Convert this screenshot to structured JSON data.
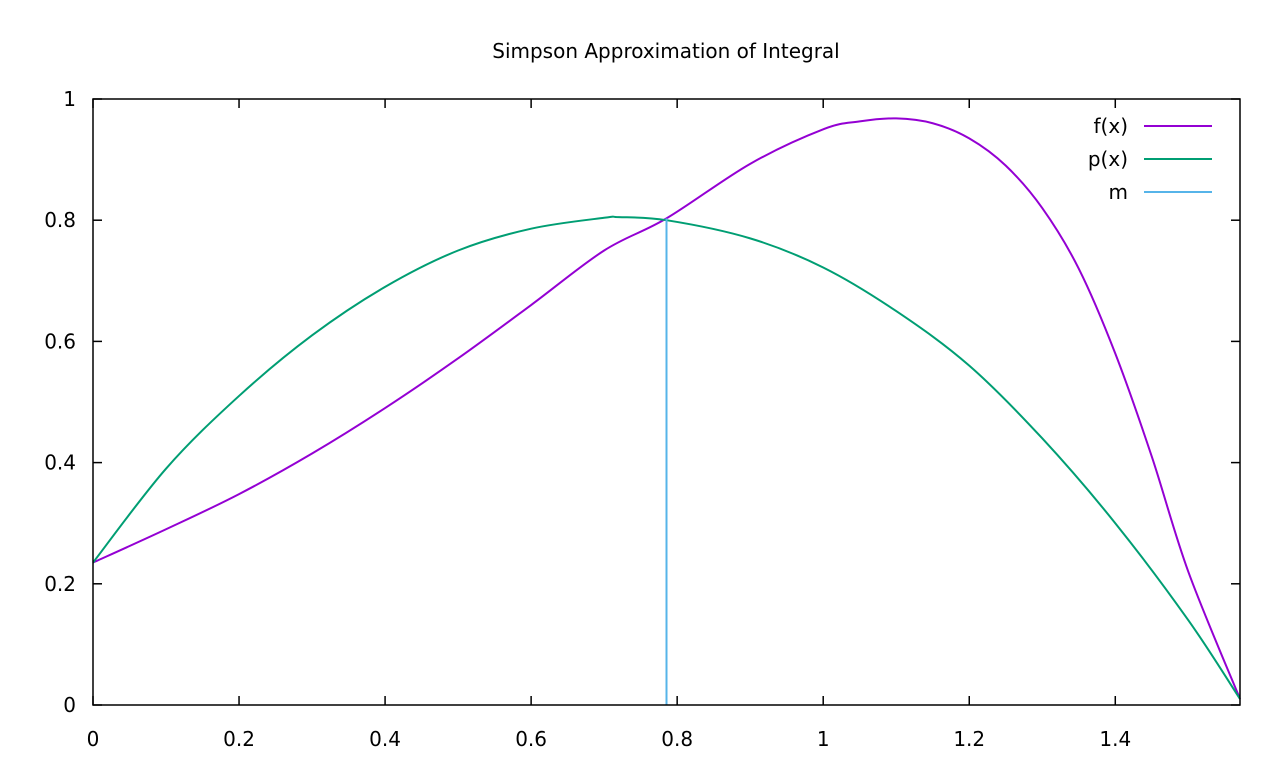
{
  "chart_data": {
    "type": "line",
    "title": "Simpson Approximation of Integral",
    "xlabel": "",
    "ylabel": "",
    "xlim": [
      0,
      1.5708
    ],
    "ylim": [
      0,
      1
    ],
    "x_ticks": [
      {
        "value": 0,
        "label": "0"
      },
      {
        "value": 0.2,
        "label": "0.2"
      },
      {
        "value": 0.4,
        "label": "0.4"
      },
      {
        "value": 0.6,
        "label": "0.6"
      },
      {
        "value": 0.8,
        "label": "0.8"
      },
      {
        "value": 1.0,
        "label": "1"
      },
      {
        "value": 1.2,
        "label": "1.2"
      },
      {
        "value": 1.4,
        "label": "1.4"
      }
    ],
    "y_ticks": [
      {
        "value": 0,
        "label": "0"
      },
      {
        "value": 0.2,
        "label": "0.2"
      },
      {
        "value": 0.4,
        "label": "0.4"
      },
      {
        "value": 0.6,
        "label": "0.6"
      },
      {
        "value": 0.8,
        "label": "0.8"
      },
      {
        "value": 1.0,
        "label": "1"
      }
    ],
    "grid": false,
    "legend_position": "top-right",
    "series": [
      {
        "name": "f(x)",
        "color": "#9400d3",
        "x": [
          0,
          0.1,
          0.2,
          0.3,
          0.4,
          0.5,
          0.6,
          0.7,
          0.7854,
          0.9,
          1.0,
          1.05,
          1.1,
          1.15,
          1.2,
          1.25,
          1.3,
          1.35,
          1.4,
          1.45,
          1.5,
          1.5708
        ],
        "y": [
          0.235,
          0.29,
          0.348,
          0.415,
          0.49,
          0.572,
          0.66,
          0.75,
          0.803,
          0.893,
          0.95,
          0.963,
          0.968,
          0.96,
          0.935,
          0.89,
          0.82,
          0.72,
          0.58,
          0.41,
          0.22,
          0.01
        ]
      },
      {
        "name": "p(x)",
        "color": "#009e73",
        "x": [
          0,
          0.1,
          0.2,
          0.3,
          0.4,
          0.5,
          0.6,
          0.7,
          0.72,
          0.7854,
          0.9,
          1.0,
          1.1,
          1.2,
          1.3,
          1.4,
          1.5,
          1.5708
        ],
        "y": [
          0.235,
          0.39,
          0.51,
          0.61,
          0.69,
          0.75,
          0.786,
          0.804,
          0.805,
          0.8,
          0.77,
          0.722,
          0.65,
          0.56,
          0.44,
          0.3,
          0.14,
          0.01
        ]
      },
      {
        "name": "m",
        "color": "#56b4e9",
        "x": [
          0.7854,
          0.7854
        ],
        "y": [
          0,
          0.803
        ]
      }
    ]
  }
}
